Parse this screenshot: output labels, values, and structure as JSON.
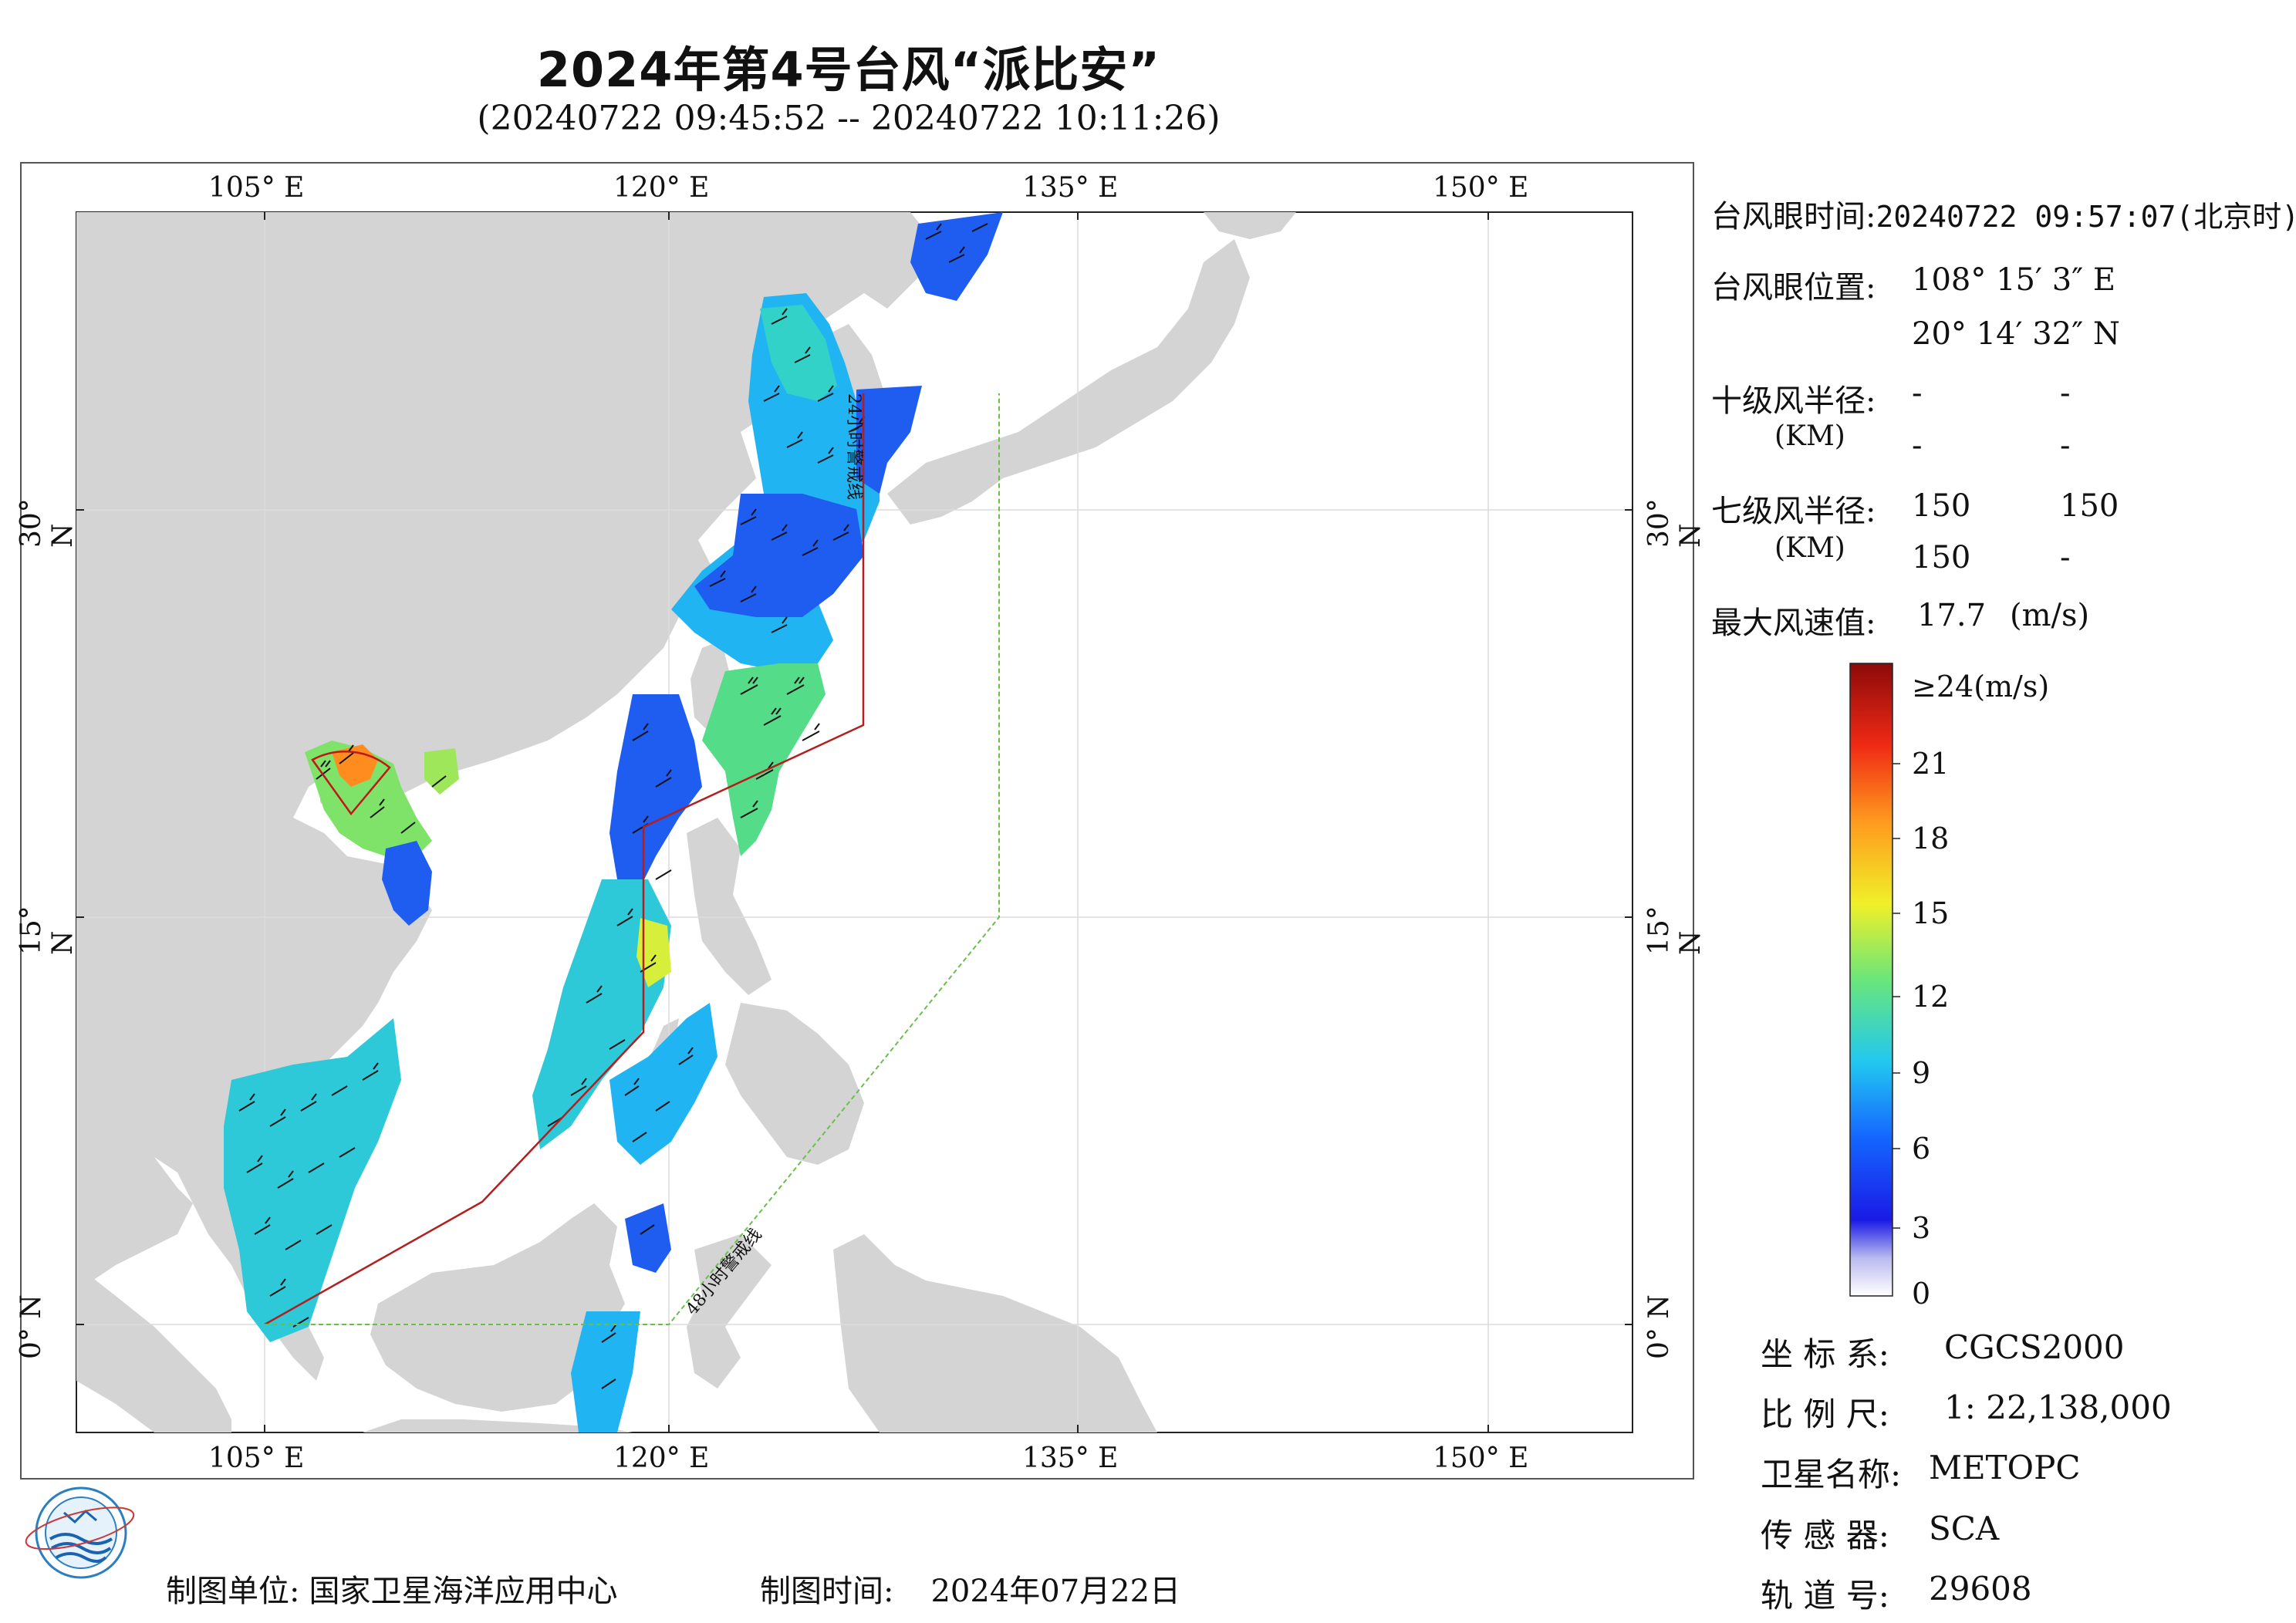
{
  "header": {
    "title": "2024年第4号台风“派比安”",
    "subtitle": "(20240722 09:45:52 -- 20240722 10:11:26)"
  },
  "map": {
    "lon_labels": [
      "105° E",
      "120° E",
      "135° E",
      "150° E"
    ],
    "lat_labels": [
      "30° N",
      "15° N",
      "0° N"
    ],
    "warning_24h": "24小时警戒线",
    "warning_48h": "48小时警戒线",
    "colors": {
      "land": "#d4d4d4",
      "ocean": "#ffffff",
      "warning24": "#b41e1e",
      "warning48": "#6abf4b"
    }
  },
  "info": {
    "eye_time_label": "台风眼时间:",
    "eye_time": "20240722 09:57:07(北京时)",
    "eye_pos_label": "台风眼位置:",
    "eye_lon": "108° 15′ 3″ E",
    "eye_lat": "20° 14′ 32″ N",
    "r10_label": "十级风半径:",
    "r10_unit": "(KM)",
    "r10_values": [
      "-",
      "-",
      "-",
      "-"
    ],
    "r7_label": "七级风半径:",
    "r7_unit": "(KM)",
    "r7_values": [
      "150",
      "150",
      "150",
      "-"
    ],
    "max_wind_label": "最大风速值:",
    "max_wind_value": "17.7",
    "max_wind_unit": "(m/s)"
  },
  "colorbar": {
    "top_label": "≥24(m/s)",
    "ticks": [
      "21",
      "18",
      "15",
      "12",
      "9",
      "6",
      "3",
      "0"
    ]
  },
  "meta": {
    "coord_label": "坐 标 系:",
    "coord_value": "CGCS2000",
    "scale_label": "比 例 尺:",
    "scale_value": "1: 22,138,000",
    "sat_label": "卫星名称:",
    "sat_value": "METOPC",
    "sensor_label": "传 感 器:",
    "sensor_value": "SCA",
    "orbit_label": "轨 道 号:",
    "orbit_value": "29608"
  },
  "footer": {
    "org_label": "制图单位:",
    "org_value": "国家卫星海洋应用中心",
    "date_label": "制图时间:",
    "date_value": "2024年07月22日"
  },
  "logo": {
    "icon": "soa-nsoas-logo-icon"
  }
}
